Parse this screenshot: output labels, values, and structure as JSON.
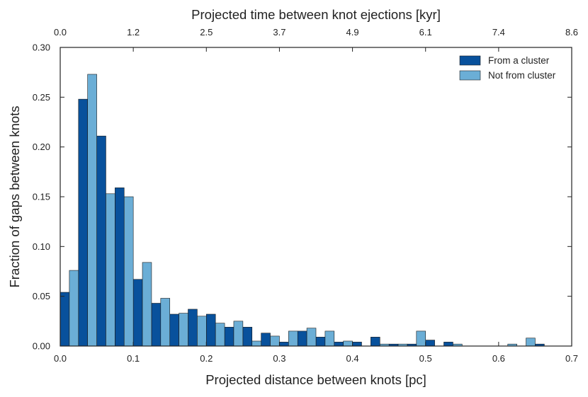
{
  "chart_data": {
    "type": "bar",
    "xlabel": "Projected distance between knots [pc]",
    "ylabel": "Fraction of gaps between knots",
    "top_xlabel": "Projected time between knot ejections [kyr]",
    "xlim": [
      0.0,
      0.7
    ],
    "ylim": [
      0.0,
      0.3
    ],
    "xticks": [
      0.0,
      0.1,
      0.2,
      0.3,
      0.4,
      0.5,
      0.6,
      0.7
    ],
    "xtick_labels": [
      "0.0",
      "0.1",
      "0.2",
      "0.3",
      "0.4",
      "0.5",
      "0.6",
      "0.7"
    ],
    "yticks": [
      0.0,
      0.05,
      0.1,
      0.15,
      0.2,
      0.25,
      0.3
    ],
    "ytick_labels": [
      "0.00",
      "0.05",
      "0.10",
      "0.15",
      "0.20",
      "0.25",
      "0.30"
    ],
    "top_xtick_labels": [
      "0.0",
      "1.2",
      "2.5",
      "3.7",
      "4.9",
      "6.1",
      "7.4",
      "8.6"
    ],
    "legend_position": "top-right",
    "bin_width": 0.0125,
    "series": [
      {
        "name": "From a cluster",
        "color": "#08519c",
        "bars": [
          {
            "x": 0.0,
            "y": 0.054
          },
          {
            "x": 0.025,
            "y": 0.248
          },
          {
            "x": 0.05,
            "y": 0.211
          },
          {
            "x": 0.075,
            "y": 0.159
          },
          {
            "x": 0.1,
            "y": 0.067
          },
          {
            "x": 0.125,
            "y": 0.043
          },
          {
            "x": 0.15,
            "y": 0.032
          },
          {
            "x": 0.175,
            "y": 0.037
          },
          {
            "x": 0.2,
            "y": 0.032
          },
          {
            "x": 0.225,
            "y": 0.019
          },
          {
            "x": 0.25,
            "y": 0.019
          },
          {
            "x": 0.275,
            "y": 0.013
          },
          {
            "x": 0.3,
            "y": 0.004
          },
          {
            "x": 0.325,
            "y": 0.015
          },
          {
            "x": 0.35,
            "y": 0.009
          },
          {
            "x": 0.375,
            "y": 0.004
          },
          {
            "x": 0.4,
            "y": 0.004
          },
          {
            "x": 0.425,
            "y": 0.009
          },
          {
            "x": 0.45,
            "y": 0.002
          },
          {
            "x": 0.475,
            "y": 0.002
          },
          {
            "x": 0.5,
            "y": 0.006
          },
          {
            "x": 0.525,
            "y": 0.004
          },
          {
            "x": 0.65,
            "y": 0.002
          }
        ]
      },
      {
        "name": "Not from cluster",
        "color": "#6baed6",
        "bars": [
          {
            "x": 0.0125,
            "y": 0.076
          },
          {
            "x": 0.0375,
            "y": 0.273
          },
          {
            "x": 0.0625,
            "y": 0.153
          },
          {
            "x": 0.0875,
            "y": 0.15
          },
          {
            "x": 0.1125,
            "y": 0.084
          },
          {
            "x": 0.1375,
            "y": 0.048
          },
          {
            "x": 0.1625,
            "y": 0.033
          },
          {
            "x": 0.1875,
            "y": 0.03
          },
          {
            "x": 0.2125,
            "y": 0.023
          },
          {
            "x": 0.2375,
            "y": 0.025
          },
          {
            "x": 0.2625,
            "y": 0.005
          },
          {
            "x": 0.2875,
            "y": 0.01
          },
          {
            "x": 0.3125,
            "y": 0.015
          },
          {
            "x": 0.3375,
            "y": 0.018
          },
          {
            "x": 0.3625,
            "y": 0.015
          },
          {
            "x": 0.3875,
            "y": 0.005
          },
          {
            "x": 0.4375,
            "y": 0.002
          },
          {
            "x": 0.4625,
            "y": 0.002
          },
          {
            "x": 0.4875,
            "y": 0.015
          },
          {
            "x": 0.5375,
            "y": 0.002
          },
          {
            "x": 0.6125,
            "y": 0.002
          },
          {
            "x": 0.6375,
            "y": 0.008
          }
        ]
      }
    ]
  }
}
